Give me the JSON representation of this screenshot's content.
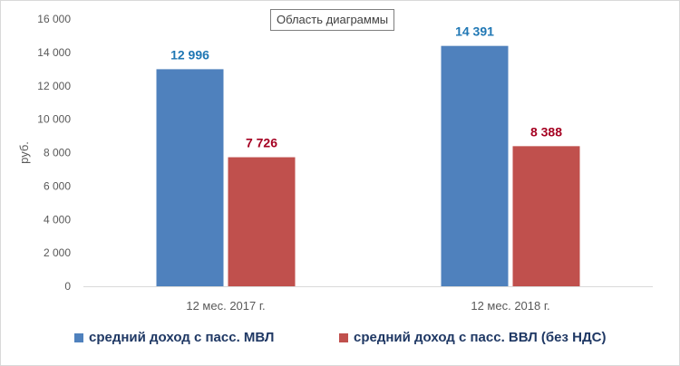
{
  "tooltip": "Область диаграммы",
  "chart_data": {
    "type": "bar",
    "categories": [
      "12 мес. 2017 г.",
      "12 мес. 2018 г."
    ],
    "series": [
      {
        "name": "средний доход с пасс. МВЛ",
        "values": [
          12996,
          14391
        ],
        "labels": [
          "12 996",
          "14 391"
        ],
        "color": "#4f81bd",
        "label_color": "#1f77b4"
      },
      {
        "name": "средний доход с пасс. ВВЛ (без НДС)",
        "values": [
          7726,
          8388
        ],
        "labels": [
          "7 726",
          "8 388"
        ],
        "color": "#c0504d",
        "label_color": "#a50021"
      }
    ],
    "ylabel": "руб.",
    "ylim": [
      0,
      16000
    ],
    "yticks": [
      0,
      2000,
      4000,
      6000,
      8000,
      10000,
      12000,
      14000,
      16000
    ],
    "ytick_labels": [
      "0",
      "2 000",
      "4 000",
      "6 000",
      "8 000",
      "10 000",
      "12 000",
      "14 000",
      "16 000"
    ],
    "grid": false,
    "legend": "bottom"
  }
}
